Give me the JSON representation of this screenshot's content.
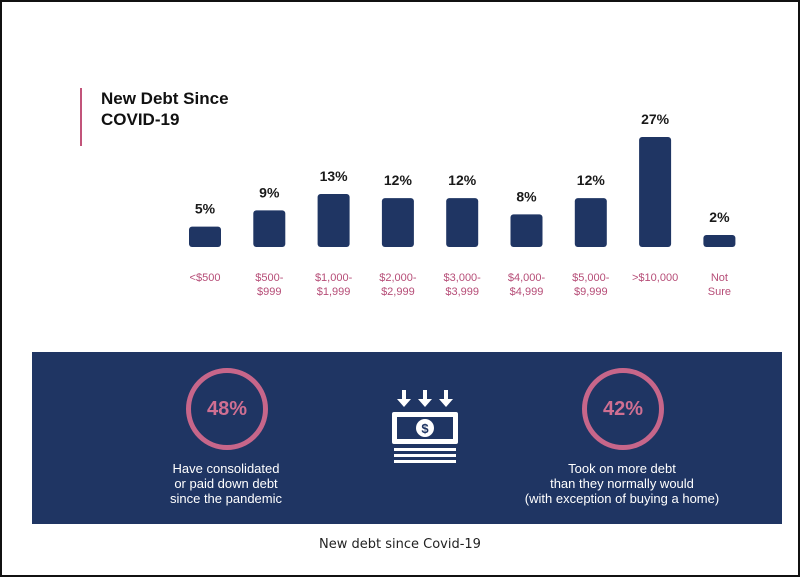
{
  "chart_data": {
    "type": "bar",
    "title": "New Debt Since COVID-19",
    "categories": [
      "<$500",
      "$500-\n$999",
      "$1,000-\n$1,999",
      "$2,000-\n$2,999",
      "$3,000-\n$3,999",
      "$4,000-\n$4,999",
      "$5,000-\n$9,999",
      ">$10,000",
      "Not\nSure"
    ],
    "values": [
      5,
      9,
      13,
      12,
      12,
      8,
      12,
      27,
      2
    ],
    "value_labels": [
      "5%",
      "9%",
      "13%",
      "12%",
      "12%",
      "8%",
      "12%",
      "27%",
      "2%"
    ],
    "unit": "%",
    "ylim": [
      0,
      27
    ],
    "grid": false,
    "legend": "none"
  },
  "colors": {
    "bar": "#1f3563",
    "accent": "#c2547a",
    "panel": "#1f3563",
    "ring": "#c7668a"
  },
  "stats": [
    {
      "value": "48%",
      "text": "Have consolidated\nor paid down debt\nsince the pandemic"
    },
    {
      "value": "42%",
      "text": "Took on more debt\nthan they normally would\n(with exception of buying a home)"
    }
  ],
  "icon": "money-bill-with-down-arrows-icon",
  "caption": "New debt since Covid-19"
}
